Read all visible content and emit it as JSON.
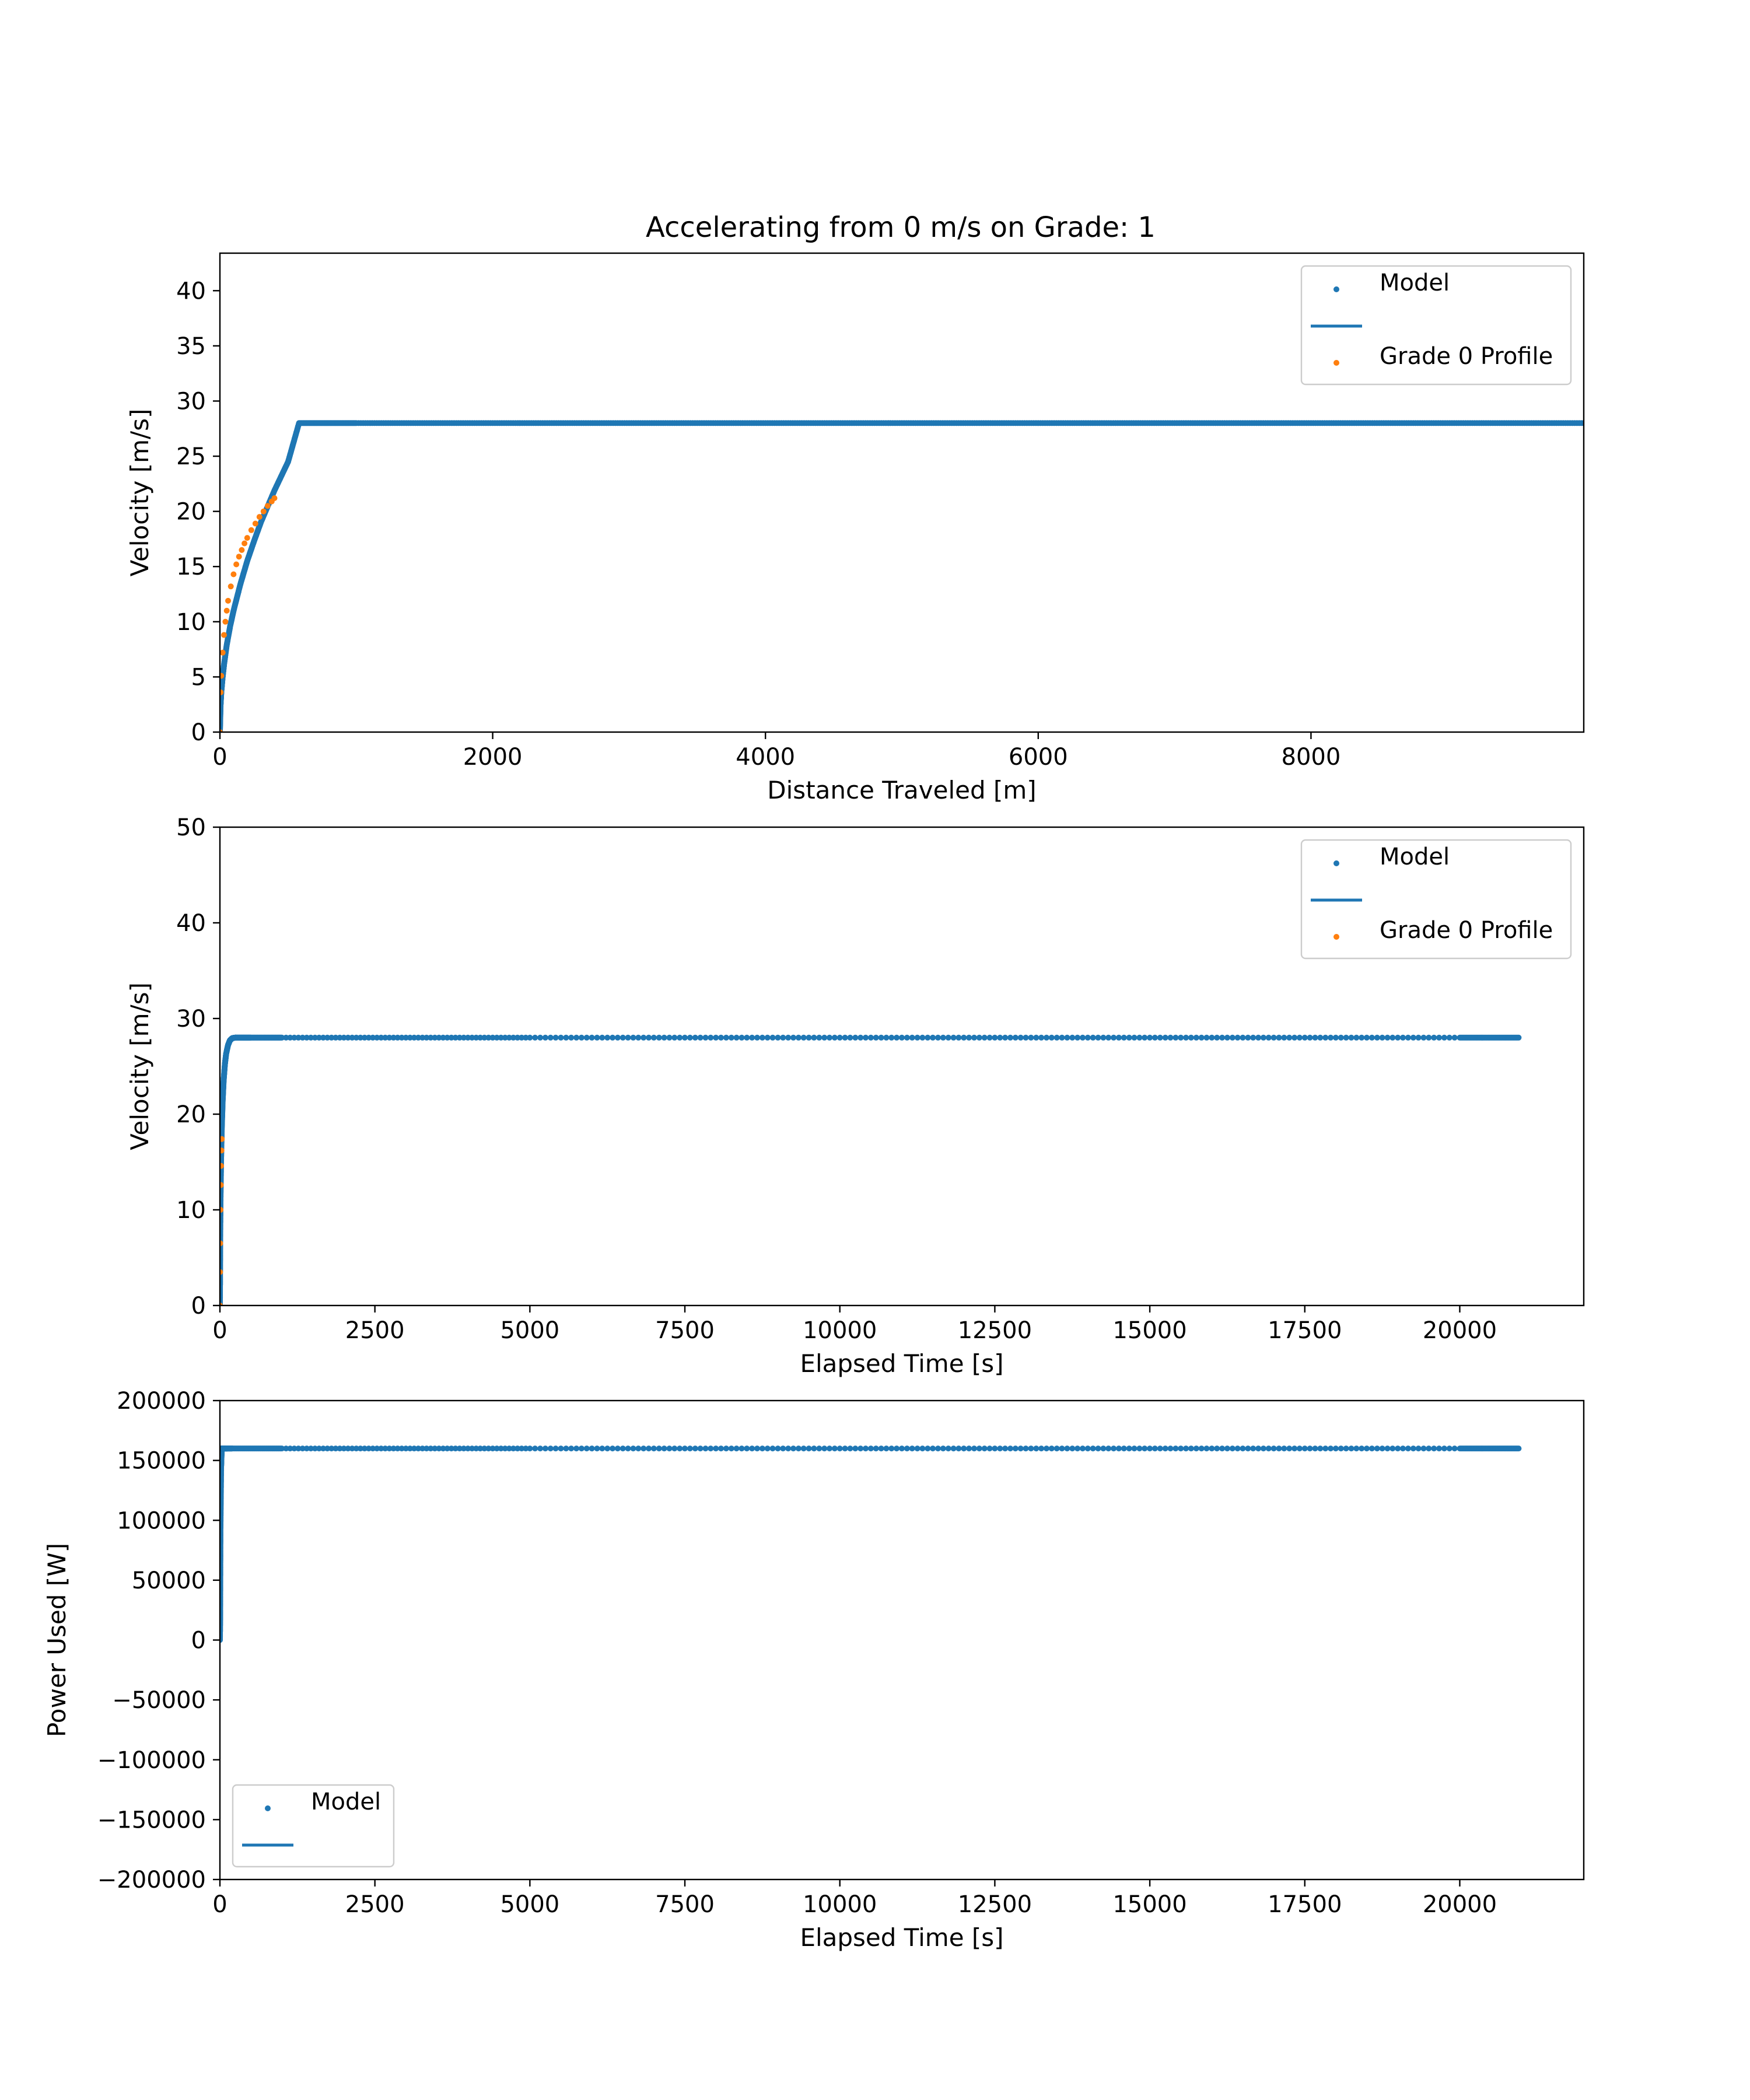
{
  "figure": {
    "title": "Accelerating from 0 m/s on Grade: 1"
  },
  "colors": {
    "model": "#1f77b4",
    "profile": "#ff7f0e",
    "axes": "#000000",
    "legend_border": "#cccccc",
    "background": "#ffffff"
  },
  "chart_data": [
    {
      "type": "scatter",
      "title": "Accelerating from 0 m/s on Grade: 1",
      "xlabel": "Distance Traveled [m]",
      "ylabel": "Velocity [m/s]",
      "xlim": [
        0,
        10000
      ],
      "ylim": [
        0,
        43.4
      ],
      "xticks": [
        0,
        2000,
        4000,
        6000,
        8000
      ],
      "yticks": [
        0,
        5,
        10,
        15,
        20,
        25,
        30,
        35,
        40
      ],
      "grid": false,
      "legend": {
        "placement": "upper-right",
        "entries": [
          {
            "label": "Model",
            "kind": "marker",
            "color": "#1f77b4"
          },
          {
            "label": "",
            "kind": "line",
            "color": "#1f77b4"
          },
          {
            "label": "Grade 0 Profile",
            "kind": "marker",
            "color": "#ff7f0e"
          }
        ]
      },
      "series": [
        {
          "name": "Model",
          "style": "dense-points",
          "color": "#1f77b4",
          "x": [
            0,
            5,
            10,
            20,
            30,
            50,
            75,
            100,
            150,
            200,
            250,
            300,
            400,
            500,
            580,
            1000,
            2000,
            3000,
            4000,
            5000,
            6000,
            7000,
            8000,
            9000,
            10000
          ],
          "y": [
            0,
            2.5,
            3.6,
            5.0,
            6.1,
            7.9,
            9.6,
            11.0,
            13.4,
            15.5,
            17.3,
            19.0,
            21.9,
            24.5,
            28.0,
            28.0,
            28.0,
            28.0,
            28.0,
            28.0,
            28.0,
            28.0,
            28.0,
            28.0,
            28.0
          ]
        },
        {
          "name": "Grade 0 Profile",
          "style": "points",
          "color": "#ff7f0e",
          "x": [
            0,
            5,
            10,
            20,
            30,
            40,
            50,
            60,
            80,
            100,
            120,
            140,
            160,
            180,
            200,
            230,
            260,
            290,
            320,
            350,
            380,
            400
          ],
          "y": [
            0,
            3.6,
            5.1,
            7.2,
            8.8,
            10.0,
            11.0,
            11.9,
            13.2,
            14.3,
            15.2,
            15.9,
            16.5,
            17.1,
            17.6,
            18.3,
            18.9,
            19.5,
            20.0,
            20.5,
            20.9,
            21.2
          ]
        }
      ]
    },
    {
      "type": "scatter",
      "xlabel": "Elapsed Time [s]",
      "ylabel": "Velocity [m/s]",
      "xlim": [
        0,
        22000
      ],
      "ylim": [
        0,
        50
      ],
      "xticks": [
        0,
        2500,
        5000,
        7500,
        10000,
        12500,
        15000,
        17500,
        20000
      ],
      "yticks": [
        0,
        10,
        20,
        30,
        40,
        50
      ],
      "grid": false,
      "legend": {
        "placement": "upper-right",
        "entries": [
          {
            "label": "Model",
            "kind": "marker",
            "color": "#1f77b4"
          },
          {
            "label": "",
            "kind": "line",
            "color": "#1f77b4"
          },
          {
            "label": "Grade 0 Profile",
            "kind": "marker",
            "color": "#ff7f0e"
          }
        ]
      },
      "series": [
        {
          "name": "Model",
          "style": "dense-points",
          "color": "#1f77b4",
          "x": [
            0,
            2,
            5,
            10,
            20,
            30,
            45,
            60,
            80,
            100,
            130,
            160,
            200,
            250,
            500,
            1000,
            5000,
            10000,
            15000,
            20000,
            20950
          ],
          "y": [
            0,
            3,
            7,
            11,
            15.5,
            18.5,
            21.5,
            23.5,
            25.2,
            26.3,
            27.2,
            27.7,
            27.95,
            28.0,
            28.0,
            28.0,
            28.0,
            28.0,
            28.0,
            28.0,
            28.0
          ]
        },
        {
          "name": "Grade 0 Profile",
          "style": "points",
          "color": "#ff7f0e",
          "x": [
            0,
            2,
            5,
            10,
            15,
            20,
            25,
            30
          ],
          "y": [
            0,
            3.5,
            6.5,
            10.0,
            12.6,
            14.6,
            16.2,
            17.4
          ]
        }
      ]
    },
    {
      "type": "scatter",
      "xlabel": "Elapsed Time [s]",
      "ylabel": "Power Used [W]",
      "xlim": [
        0,
        22000
      ],
      "ylim": [
        -200000,
        200000
      ],
      "xticks": [
        0,
        2500,
        5000,
        7500,
        10000,
        12500,
        15000,
        17500,
        20000
      ],
      "yticks": [
        -200000,
        -150000,
        -100000,
        -50000,
        0,
        50000,
        100000,
        150000,
        200000
      ],
      "ytick_labels": [
        "−200000",
        "−150000",
        "−100000",
        "−50000",
        "0",
        "50000",
        "100000",
        "150000",
        "200000"
      ],
      "grid": false,
      "legend": {
        "placement": "lower-left",
        "entries": [
          {
            "label": "Model",
            "kind": "marker",
            "color": "#1f77b4"
          },
          {
            "label": "",
            "kind": "line",
            "color": "#1f77b4"
          }
        ]
      },
      "series": [
        {
          "name": "Model",
          "style": "dense-points",
          "color": "#1f77b4",
          "x": [
            0,
            5,
            10,
            20,
            30,
            50,
            80,
            120,
            200,
            1000,
            5000,
            10000,
            15000,
            20000,
            20950
          ],
          "y": [
            0,
            25000,
            95000,
            145000,
            160000,
            160000,
            160000,
            160000,
            160000,
            160000,
            160000,
            160000,
            160000,
            160000,
            160000
          ]
        }
      ]
    }
  ]
}
